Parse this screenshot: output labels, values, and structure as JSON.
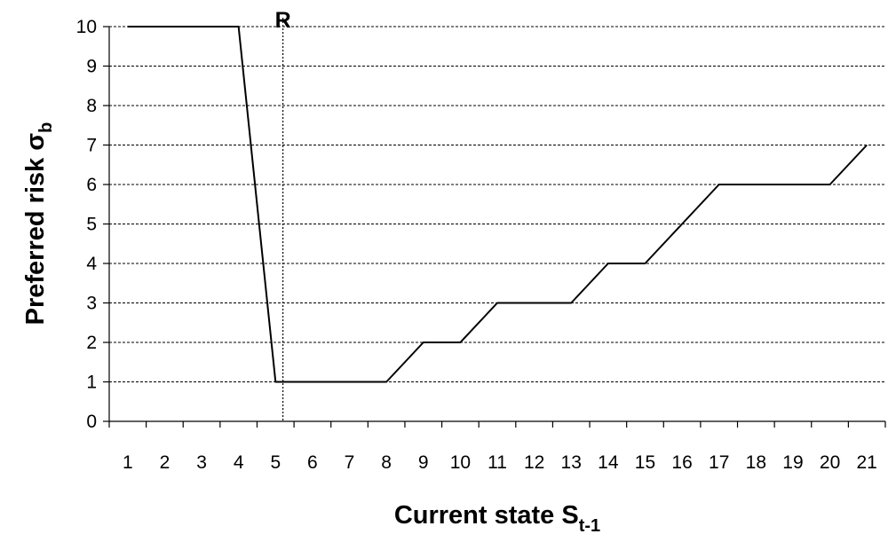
{
  "chart_data": {
    "type": "line",
    "title": "",
    "xlabel": {
      "main": "Current state S",
      "sub": "t-1"
    },
    "ylabel": {
      "main": "Preferred risk σ",
      "sub": "b"
    },
    "categories": [
      "1",
      "2",
      "3",
      "4",
      "5",
      "6",
      "7",
      "8",
      "9",
      "10",
      "11",
      "12",
      "13",
      "14",
      "15",
      "16",
      "17",
      "18",
      "19",
      "20",
      "21"
    ],
    "x": [
      1,
      2,
      3,
      4,
      5,
      6,
      7,
      8,
      9,
      10,
      11,
      12,
      13,
      14,
      15,
      16,
      17,
      18,
      19,
      20,
      21
    ],
    "series": [
      {
        "values": [
          10,
          10,
          10,
          10,
          1,
          1,
          1,
          1,
          2,
          2,
          3,
          3,
          3,
          4,
          4,
          5,
          6,
          6,
          6,
          6,
          7
        ]
      }
    ],
    "ylim": [
      0,
      10
    ],
    "yticks": [
      0,
      1,
      2,
      3,
      4,
      5,
      6,
      7,
      8,
      9,
      10
    ],
    "grid": "horizontal dashed",
    "legend": "none",
    "annotations": [
      {
        "label": "R",
        "x": 5.2,
        "style": "dotted vertical line"
      }
    ],
    "colors": {
      "line": "#000000",
      "grid": "#000000"
    }
  }
}
